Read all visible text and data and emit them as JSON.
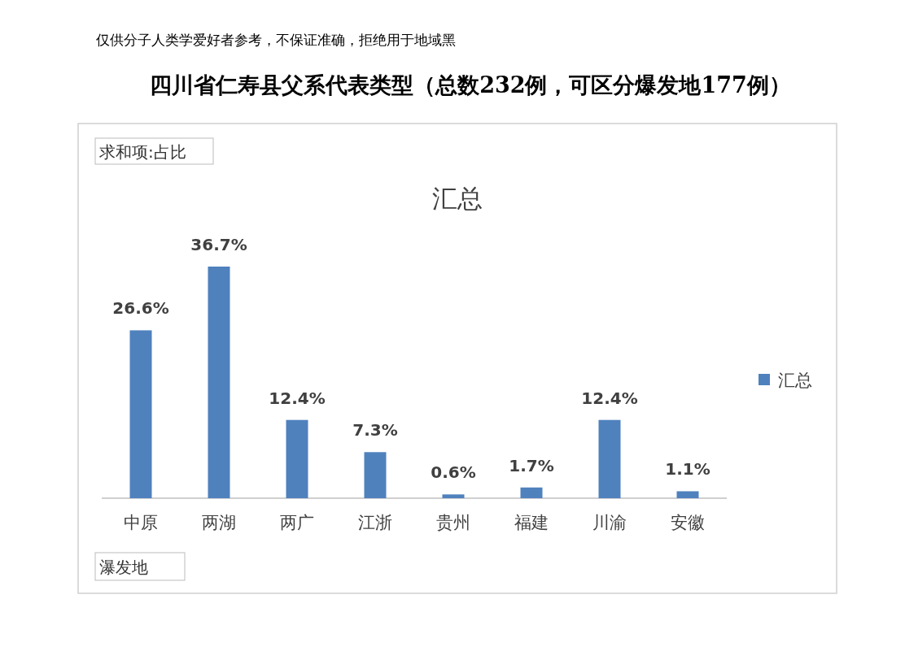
{
  "chart_data": {
    "type": "bar",
    "title": "四川省仁寿县父系代表类型（总数232例，可区分爆发地177例）",
    "subtitle": "汇总",
    "xlabel": "瀑发地",
    "annotations": [
      "仅供分子人类学爱好者参考，不保证准确，拒绝用于地域黑",
      "求和项:占比"
    ],
    "categories": [
      "中原",
      "两湖",
      "两广",
      "江浙",
      "贵州",
      "福建",
      "川渝",
      "安徽"
    ],
    "series": [
      {
        "name": "汇总",
        "color": "#4f81bd",
        "values": [
          26.6,
          36.7,
          12.4,
          7.3,
          0.6,
          1.7,
          12.4,
          1.1
        ],
        "value_labels": [
          "26.6%",
          "36.7%",
          "12.4%",
          "7.3%",
          "0.6%",
          "1.7%",
          "12.4%",
          "1.1%"
        ]
      }
    ],
    "legend": "right"
  }
}
